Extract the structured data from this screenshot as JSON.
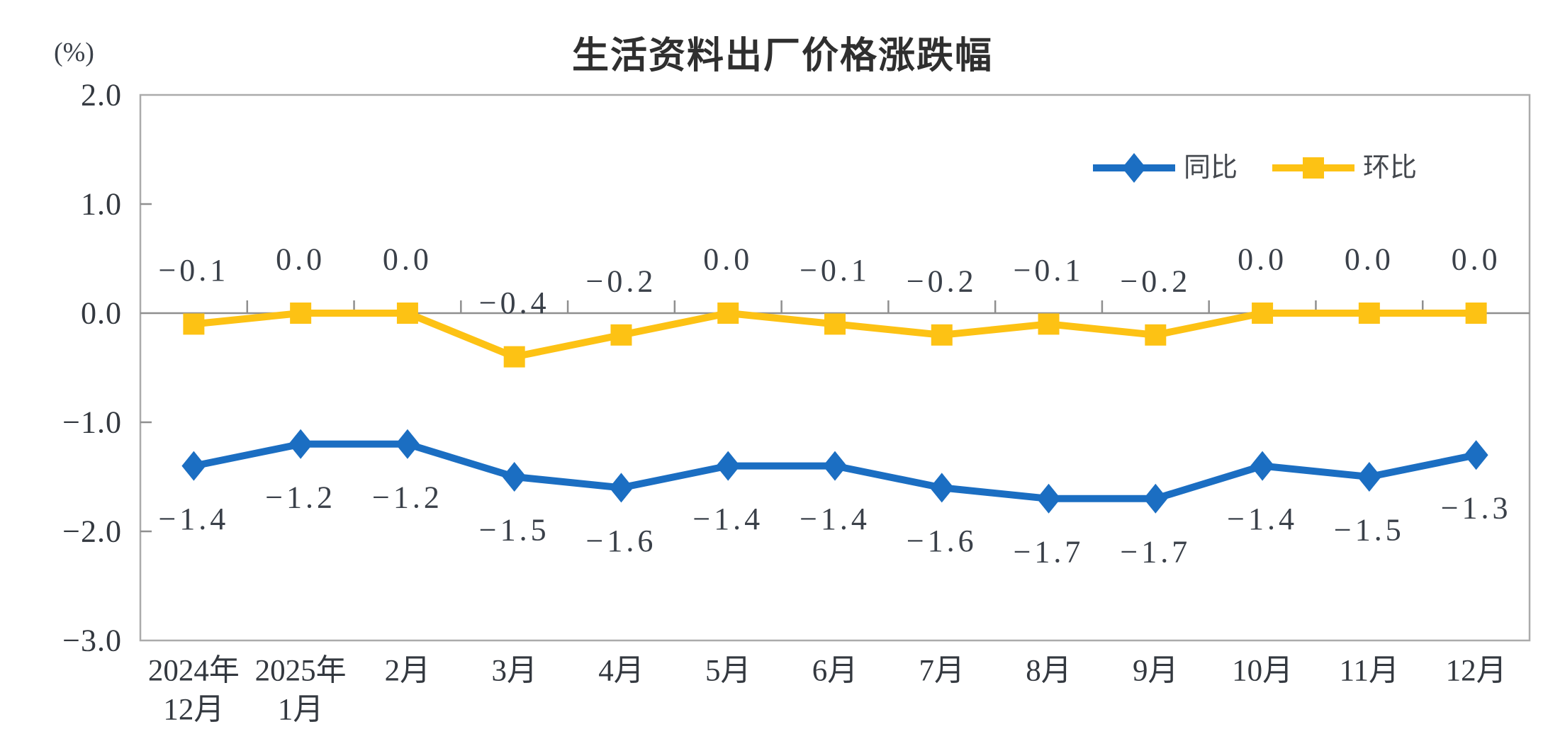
{
  "title": "生活资料出厂价格涨跌幅",
  "unit_label": "(%)",
  "chart_data": {
    "type": "line",
    "categories": [
      [
        "2024年",
        "12月"
      ],
      [
        "2025年",
        "1月"
      ],
      [
        "2月"
      ],
      [
        "3月"
      ],
      [
        "4月"
      ],
      [
        "5月"
      ],
      [
        "6月"
      ],
      [
        "7月"
      ],
      [
        "8月"
      ],
      [
        "9月"
      ],
      [
        "10月"
      ],
      [
        "11月"
      ],
      [
        "12月"
      ]
    ],
    "series": [
      {
        "id": "tongbi",
        "name": "同比",
        "color": "#1B6EC2",
        "marker": "diamond",
        "label_position": "below",
        "values": [
          -1.4,
          -1.2,
          -1.2,
          -1.5,
          -1.6,
          -1.4,
          -1.4,
          -1.6,
          -1.7,
          -1.7,
          -1.4,
          -1.5,
          -1.3
        ]
      },
      {
        "id": "huanbi",
        "name": "环比",
        "color": "#FDC214",
        "marker": "square",
        "label_position": "above",
        "values": [
          -0.1,
          0.0,
          0.0,
          -0.4,
          -0.2,
          0.0,
          -0.1,
          -0.2,
          -0.1,
          -0.2,
          0.0,
          0.0,
          0.0
        ]
      }
    ],
    "title": "生活资料出厂价格涨跌幅",
    "ylabel": "(%)",
    "xlabel": "",
    "ylim": [
      -3.0,
      2.0
    ],
    "yticks": [
      2.0,
      1.0,
      0.0,
      -1.0,
      -2.0,
      -3.0
    ],
    "grid": false,
    "legend_position": "top-right-inside",
    "colors": {
      "plot_border": "#ababab",
      "zero_axis": "#8f8f8f",
      "tick": "#8f8f8f",
      "label_text": "#3a4049",
      "axis_text": "#33383f",
      "legend_text": "#44484e"
    }
  }
}
